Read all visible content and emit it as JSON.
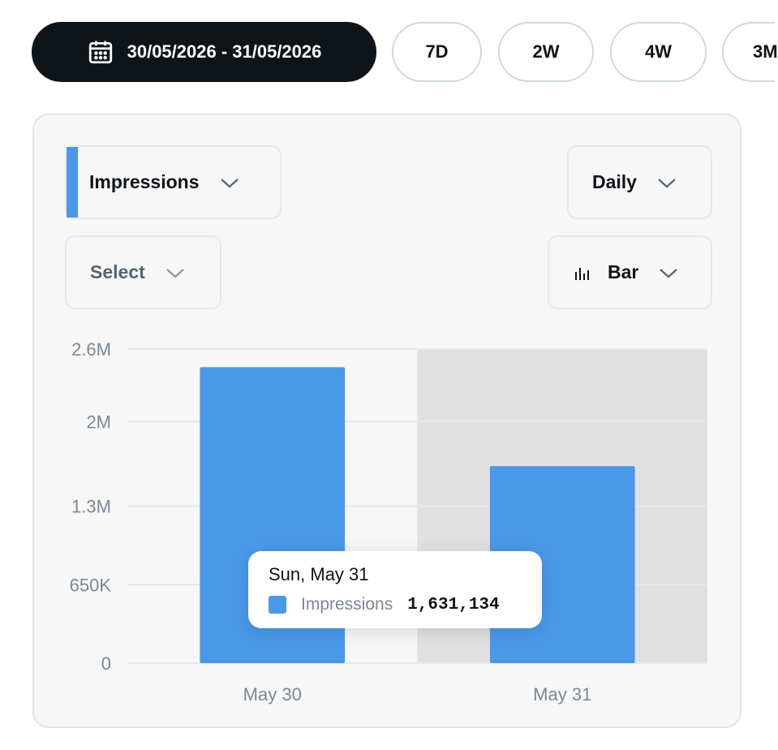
{
  "range_tabs": {
    "date_range": "30/05/2026 - 31/05/2026",
    "tabs": [
      "7D",
      "2W",
      "4W",
      "3M"
    ]
  },
  "controls": {
    "metric": "Impressions",
    "interval": "Daily",
    "compare": "Select",
    "chart_type": "Bar"
  },
  "tooltip": {
    "date": "Sun, May 31",
    "label": "Impressions",
    "value": "1,631,134"
  },
  "colors": {
    "bar": "#4a99e9",
    "highlight": "#e0e0e0",
    "grid": "#e6e9ec",
    "tick": "#7b8893"
  },
  "icons": {
    "calendar": "calendar-icon",
    "chevron": "chevron-down-icon",
    "chart_type": "bar-chart-icon"
  },
  "chart_data": {
    "type": "bar",
    "categories": [
      "May 30",
      "May 31"
    ],
    "series": [
      {
        "name": "Impressions",
        "values": [
          2450000,
          1631134
        ]
      }
    ],
    "y_ticks": [
      {
        "value": 0,
        "label": "0"
      },
      {
        "value": 650000,
        "label": "650K"
      },
      {
        "value": 1300000,
        "label": "1.3M"
      },
      {
        "value": 2000000,
        "label": "2M"
      },
      {
        "value": 2600000,
        "label": "2.6M"
      }
    ],
    "ylim": [
      0,
      2600000
    ],
    "highlighted_category": "May 31",
    "grid": true,
    "legend": "none"
  }
}
